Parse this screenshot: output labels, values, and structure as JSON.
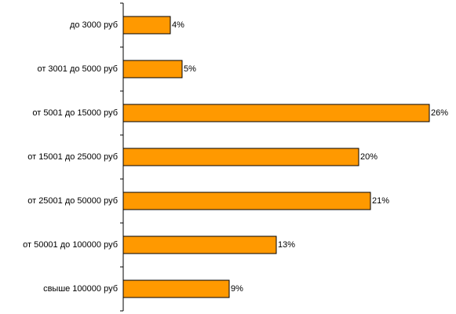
{
  "chart_data": {
    "type": "bar",
    "orientation": "horizontal",
    "categories": [
      "до 3000 руб",
      "от 3001 до 5000 руб",
      "от 5001 до 15000 руб",
      "от 15001 до 25000 руб",
      "от 25001 до 50000 руб",
      "от 50001 до 100000 руб",
      "свыше 100000 руб"
    ],
    "values": [
      4,
      5,
      26,
      20,
      21,
      13,
      9
    ],
    "value_labels": [
      "4%",
      "5%",
      "26%",
      "20%",
      "21%",
      "13%",
      "9%"
    ],
    "color": "#ff9900"
  }
}
